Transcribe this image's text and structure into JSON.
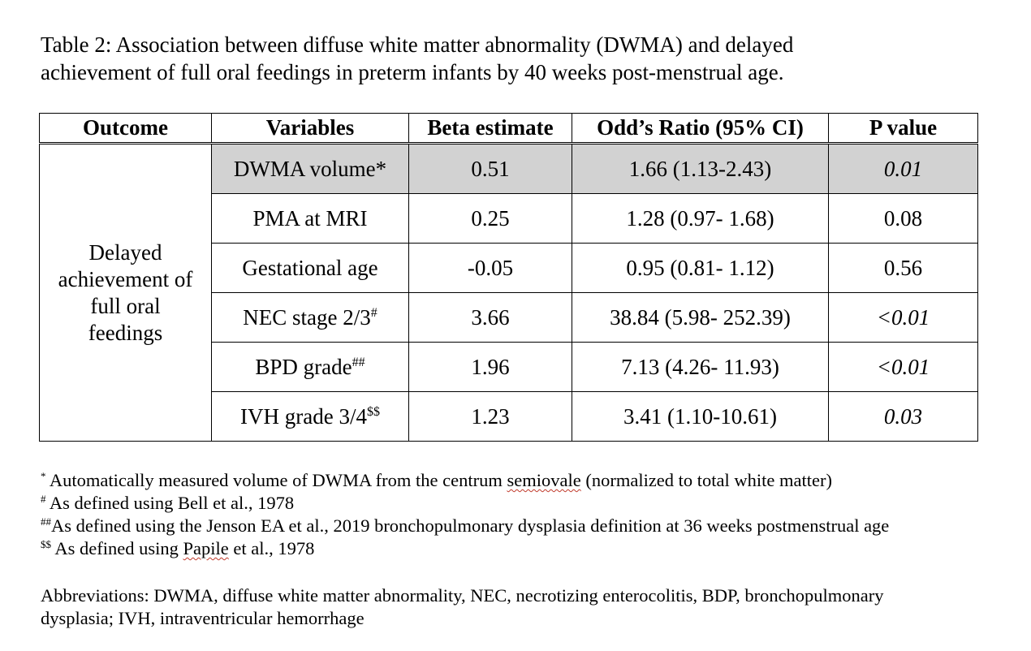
{
  "title": {
    "line1": "Table 2: Association between diffuse white matter abnormality (DWMA) and delayed",
    "line2": "achievement of full oral feedings in preterm infants by 40 weeks post-menstrual age."
  },
  "table": {
    "headers": [
      "Outcome",
      "Variables",
      "Beta estimate",
      "Odd’s Ratio (95% CI)",
      "P value"
    ],
    "outcome_lines": [
      "Delayed",
      "achievement of",
      "full oral",
      "feedings"
    ],
    "rows": [
      {
        "variable": "DWMA volume*",
        "sup": "",
        "beta": "0.51",
        "or": "1.66 (1.13-2.43)",
        "p": "0.01",
        "p_italic": true,
        "shaded": true
      },
      {
        "variable": "PMA at MRI",
        "sup": "",
        "beta": "0.25",
        "or": "1.28 (0.97- 1.68)",
        "p": "0.08",
        "p_italic": false,
        "shaded": false
      },
      {
        "variable": "Gestational age",
        "sup": "",
        "beta": "-0.05",
        "or": "0.95 (0.81- 1.12)",
        "p": "0.56",
        "p_italic": false,
        "shaded": false
      },
      {
        "variable": "NEC stage 2/3",
        "sup": "#",
        "beta": "3.66",
        "or": "38.84 (5.98- 252.39)",
        "p": "<0.01",
        "p_italic": true,
        "shaded": false
      },
      {
        "variable": "BPD grade",
        "sup": "##",
        "beta": "1.96",
        "or": "7.13 (4.26- 11.93)",
        "p": "<0.01",
        "p_italic": true,
        "shaded": false
      },
      {
        "variable": "IVH grade 3/4",
        "sup": "$$",
        "beta": "1.23",
        "or": "3.41 (1.10-10.61)",
        "p": "0.03",
        "p_italic": true,
        "shaded": false
      }
    ]
  },
  "footnotes": {
    "f1_mark": "*",
    "f1_a": " Automatically measured volume of DWMA from the centrum ",
    "f1_b": "semiovale",
    "f1_c": " (normalized to total white matter)",
    "f2_mark": "#",
    "f2_text": " As defined using Bell et al., 1978",
    "f3_mark": "##",
    "f3_text": "As defined using the Jenson EA et al., 2019 bronchopulmonary dysplasia definition at 36 weeks postmenstrual age",
    "f4_mark": "$$",
    "f4_a": " As defined using ",
    "f4_b": "Papile",
    "f4_c": " et al., 1978"
  },
  "abbreviations": {
    "line1": "Abbreviations: DWMA, diffuse white matter abnormality, NEC, necrotizing enterocolitis, BDP, bronchopulmonary",
    "line2": "dysplasia; IVH, intraventricular hemorrhage"
  }
}
